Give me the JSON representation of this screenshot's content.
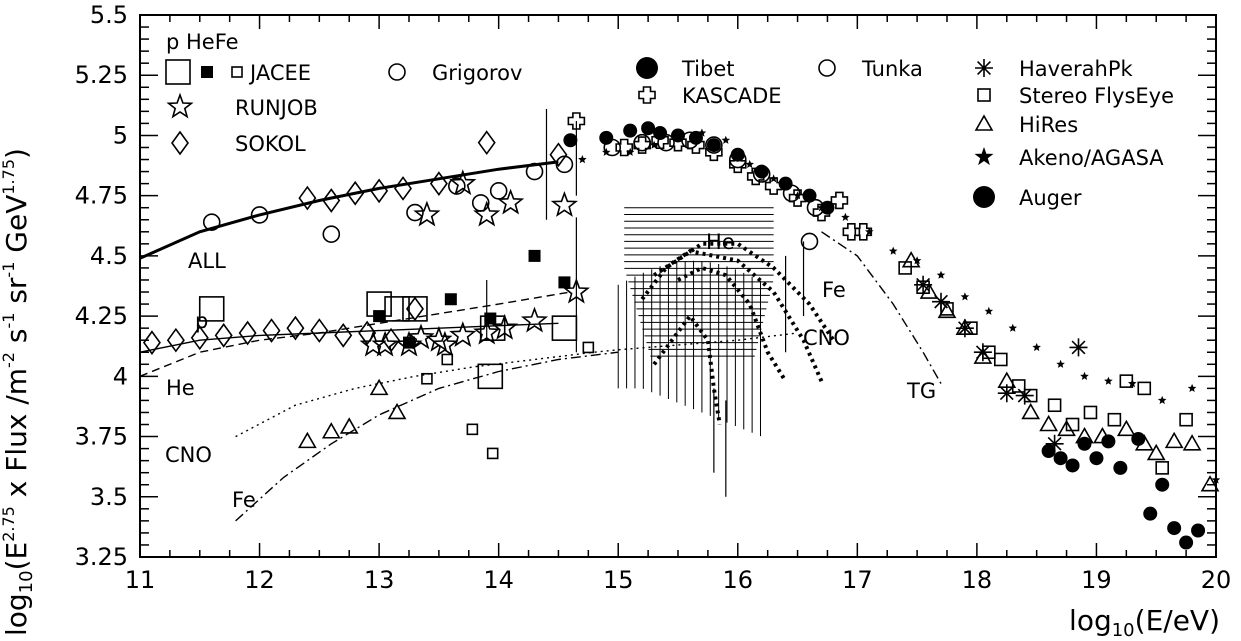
{
  "chart_data": {
    "type": "scatter",
    "title": "",
    "xlabel_parts": [
      "log",
      "10",
      "(E/eV)"
    ],
    "ylabel_parts": [
      "log",
      "10",
      "(E",
      "2.75",
      " x Flux /m",
      "-2",
      " s",
      "-1",
      " sr",
      "-1",
      " GeV",
      "1.75",
      ")"
    ],
    "xlim": [
      11,
      20
    ],
    "ylim": [
      3.25,
      5.5
    ],
    "x_ticks": [
      "11",
      "12",
      "13",
      "14",
      "15",
      "16",
      "17",
      "18",
      "19",
      "20"
    ],
    "y_ticks": [
      "3.25",
      "3.5",
      "3.75",
      "4",
      "4.25",
      "4.5",
      "4.75",
      "5",
      "5.25",
      "5.5"
    ],
    "legend_header": "p HeFe",
    "legend": [
      {
        "label": "JACEE",
        "marker": "square-open-large, square-filled, square-open-small"
      },
      {
        "label": "Grigorov",
        "marker": "circle-open"
      },
      {
        "label": "RUNJOB",
        "marker": "star-open"
      },
      {
        "label": "SOKOL",
        "marker": "diamond-open"
      },
      {
        "label": "Tibet",
        "marker": "circle-filled"
      },
      {
        "label": "Tunka",
        "marker": "circle-open"
      },
      {
        "label": "KASCADE",
        "marker": "cross-open"
      },
      {
        "label": "HaverahPk",
        "marker": "asterisk"
      },
      {
        "label": "Stereo FlysEye",
        "marker": "square-open"
      },
      {
        "label": "HiRes",
        "marker": "triangle-open"
      },
      {
        "label": "Akeno/AGASA",
        "marker": "star-filled"
      },
      {
        "label": "Auger",
        "marker": "circle-filled"
      }
    ],
    "annotations": [
      "ALL",
      "p",
      "He",
      "CNO",
      "Fe",
      "He",
      "Fe",
      "CNO",
      "TG"
    ],
    "series": [
      {
        "name": "ALL",
        "style": "fit-curve",
        "points": [
          [
            11,
            4.49
          ],
          [
            11.5,
            4.6
          ],
          [
            12,
            4.67
          ],
          [
            12.5,
            4.73
          ],
          [
            13,
            4.78
          ],
          [
            13.5,
            4.82
          ],
          [
            14,
            4.86
          ],
          [
            14.5,
            4.89
          ]
        ]
      },
      {
        "name": "p",
        "style": "fit-curve",
        "points": [
          [
            11,
            4.1
          ],
          [
            11.5,
            4.15
          ],
          [
            12,
            4.17
          ],
          [
            12.5,
            4.18
          ],
          [
            13,
            4.19
          ],
          [
            13.5,
            4.2
          ],
          [
            14,
            4.21
          ],
          [
            14.5,
            4.22
          ]
        ]
      },
      {
        "name": "He",
        "style": "dashed",
        "points": [
          [
            11,
            4.0
          ],
          [
            11.5,
            4.1
          ],
          [
            12,
            4.15
          ],
          [
            12.5,
            4.18
          ],
          [
            13,
            4.22
          ],
          [
            13.5,
            4.26
          ],
          [
            14,
            4.3
          ],
          [
            14.6,
            4.35
          ]
        ]
      },
      {
        "name": "CNO",
        "style": "dotted",
        "points": [
          [
            11.8,
            3.75
          ],
          [
            12.3,
            3.88
          ],
          [
            12.8,
            3.95
          ],
          [
            13.3,
            4.0
          ],
          [
            13.8,
            4.04
          ],
          [
            14.3,
            4.07
          ],
          [
            14.8,
            4.1
          ],
          [
            15,
            4.11
          ],
          [
            15.5,
            4.13
          ],
          [
            16,
            4.15
          ],
          [
            16.5,
            4.18
          ]
        ]
      },
      {
        "name": "Fe",
        "style": "dash-dot",
        "points": [
          [
            11.8,
            3.4
          ],
          [
            12.2,
            3.58
          ],
          [
            12.6,
            3.72
          ],
          [
            13,
            3.84
          ],
          [
            13.5,
            3.95
          ],
          [
            14,
            4.02
          ],
          [
            14.5,
            4.07
          ],
          [
            15,
            4.1
          ]
        ]
      },
      {
        "name": "TG",
        "style": "dash-dot",
        "points": [
          [
            16.7,
            4.6
          ],
          [
            17.0,
            4.5
          ],
          [
            17.3,
            4.3
          ],
          [
            17.55,
            4.1
          ],
          [
            17.7,
            3.97
          ]
        ]
      },
      {
        "name": "He",
        "style": "thick-dotted",
        "points": [
          [
            15.3,
            4.42
          ],
          [
            15.6,
            4.52
          ],
          [
            16.0,
            4.48
          ],
          [
            16.3,
            4.35
          ],
          [
            16.55,
            4.15
          ],
          [
            16.7,
            3.98
          ]
        ]
      },
      {
        "name": "CNO",
        "style": "thick-dotted",
        "points": [
          [
            15.5,
            4.4
          ],
          [
            15.7,
            4.45
          ],
          [
            15.9,
            4.42
          ],
          [
            16.1,
            4.3
          ],
          [
            16.25,
            4.1
          ],
          [
            16.4,
            3.98
          ]
        ]
      },
      {
        "name": "Fe",
        "style": "thick-dotted",
        "points": [
          [
            15.2,
            4.32
          ],
          [
            15.4,
            4.45
          ],
          [
            15.7,
            4.55
          ],
          [
            16.0,
            4.55
          ],
          [
            16.3,
            4.45
          ],
          [
            16.6,
            4.3
          ],
          [
            16.8,
            4.15
          ]
        ]
      },
      {
        "name": "p",
        "style": "thick-dotted",
        "points": [
          [
            15.3,
            4.05
          ],
          [
            15.45,
            4.15
          ],
          [
            15.6,
            4.25
          ],
          [
            15.75,
            4.15
          ],
          [
            15.8,
            3.95
          ],
          [
            15.85,
            3.8
          ]
        ]
      },
      {
        "name": "JACEE",
        "marker": "square-open-large",
        "points": [
          [
            11.6,
            4.28
          ],
          [
            13.0,
            4.3
          ],
          [
            13.15,
            4.28
          ],
          [
            13.3,
            4.28
          ],
          [
            13.95,
            4.2
          ],
          [
            13.93,
            4.0
          ],
          [
            14.55,
            4.2
          ]
        ]
      },
      {
        "name": "JACEE",
        "marker": "square-filled",
        "points": [
          [
            13.0,
            4.25
          ],
          [
            13.25,
            4.14
          ],
          [
            13.6,
            4.32
          ],
          [
            13.93,
            4.24
          ],
          [
            14.3,
            4.5
          ],
          [
            14.55,
            4.39
          ]
        ]
      },
      {
        "name": "JACEE",
        "marker": "square-open-small",
        "points": [
          [
            13.4,
            3.99
          ],
          [
            13.57,
            4.07
          ],
          [
            13.78,
            3.78
          ],
          [
            13.95,
            3.68
          ],
          [
            14.75,
            4.12
          ]
        ]
      },
      {
        "name": "Grigorov",
        "marker": "circle-open",
        "points": [
          [
            11.6,
            4.64
          ],
          [
            12.0,
            4.67
          ],
          [
            12.6,
            4.59
          ],
          [
            13.3,
            4.68
          ],
          [
            13.65,
            4.79
          ],
          [
            13.85,
            4.72
          ],
          [
            14.0,
            4.77
          ],
          [
            14.3,
            4.85
          ],
          [
            14.55,
            4.88
          ]
        ]
      },
      {
        "name": "RUNJOB",
        "marker": "star-open",
        "points": [
          [
            13.05,
            4.13
          ],
          [
            13.35,
            4.16
          ],
          [
            13.5,
            4.15
          ],
          [
            13.55,
            4.13
          ],
          [
            13.7,
            4.17
          ],
          [
            13.9,
            4.18
          ],
          [
            14.05,
            4.2
          ],
          [
            14.3,
            4.23
          ],
          [
            14.65,
            4.35
          ],
          [
            13.25,
            4.13
          ],
          [
            12.95,
            4.13
          ],
          [
            13.4,
            4.67
          ],
          [
            13.7,
            4.8
          ],
          [
            13.9,
            4.67
          ],
          [
            14.1,
            4.72
          ],
          [
            14.55,
            4.71
          ]
        ]
      },
      {
        "name": "SOKOL",
        "marker": "diamond-open",
        "points": [
          [
            11.1,
            4.14
          ],
          [
            11.3,
            4.15
          ],
          [
            11.5,
            4.16
          ],
          [
            11.7,
            4.17
          ],
          [
            11.9,
            4.18
          ],
          [
            12.1,
            4.19
          ],
          [
            12.3,
            4.2
          ],
          [
            12.5,
            4.19
          ],
          [
            12.7,
            4.17
          ],
          [
            12.9,
            4.18
          ],
          [
            13.1,
            4.15
          ],
          [
            13.3,
            4.28
          ],
          [
            12.4,
            4.74
          ],
          [
            12.6,
            4.73
          ],
          [
            12.8,
            4.76
          ],
          [
            13.0,
            4.77
          ],
          [
            13.2,
            4.78
          ],
          [
            13.5,
            4.8
          ],
          [
            13.9,
            4.97
          ],
          [
            14.5,
            4.92
          ]
        ]
      },
      {
        "name": "Tibet",
        "marker": "circle-filled",
        "points": [
          [
            14.6,
            4.98
          ],
          [
            14.9,
            4.99
          ],
          [
            15.1,
            5.02
          ],
          [
            15.25,
            5.03
          ],
          [
            15.35,
            5.01
          ],
          [
            15.5,
            5.0
          ],
          [
            15.65,
            4.99
          ],
          [
            15.8,
            4.96
          ],
          [
            16.0,
            4.92
          ],
          [
            16.2,
            4.85
          ],
          [
            16.4,
            4.8
          ],
          [
            16.6,
            4.75
          ],
          [
            16.75,
            4.7
          ]
        ]
      },
      {
        "name": "Tunka",
        "marker": "circle-open",
        "points": [
          [
            14.95,
            4.95
          ],
          [
            15.2,
            4.97
          ],
          [
            15.4,
            4.97
          ],
          [
            15.6,
            4.98
          ],
          [
            15.8,
            4.96
          ],
          [
            16.0,
            4.9
          ],
          [
            16.2,
            4.84
          ],
          [
            16.45,
            4.76
          ],
          [
            16.65,
            4.7
          ],
          [
            16.6,
            4.56
          ]
        ]
      },
      {
        "name": "KASCADE",
        "marker": "cross-open",
        "points": [
          [
            14.65,
            5.06
          ],
          [
            15.05,
            4.95
          ],
          [
            15.2,
            4.96
          ],
          [
            15.35,
            4.98
          ],
          [
            15.5,
            4.97
          ],
          [
            15.65,
            4.96
          ],
          [
            15.8,
            4.93
          ],
          [
            16.0,
            4.88
          ],
          [
            16.15,
            4.83
          ],
          [
            16.3,
            4.79
          ],
          [
            16.5,
            4.74
          ],
          [
            16.7,
            4.68
          ],
          [
            16.85,
            4.73
          ],
          [
            16.95,
            4.6
          ],
          [
            17.05,
            4.6
          ]
        ]
      },
      {
        "name": "HaverahPk",
        "marker": "asterisk",
        "points": [
          [
            17.55,
            4.38
          ],
          [
            17.7,
            4.31
          ],
          [
            17.9,
            4.2
          ],
          [
            18.05,
            4.1
          ],
          [
            18.25,
            3.93
          ],
          [
            18.4,
            3.92
          ],
          [
            18.65,
            3.72
          ],
          [
            18.85,
            4.12
          ]
        ]
      },
      {
        "name": "Stereo FlysEye",
        "marker": "square-open",
        "points": [
          [
            17.4,
            4.45
          ],
          [
            17.55,
            4.37
          ],
          [
            17.75,
            4.28
          ],
          [
            17.95,
            4.2
          ],
          [
            18.1,
            4.1
          ],
          [
            18.2,
            4.07
          ],
          [
            18.35,
            3.96
          ],
          [
            18.45,
            3.92
          ],
          [
            18.65,
            3.88
          ],
          [
            18.8,
            3.8
          ],
          [
            18.95,
            3.85
          ],
          [
            19.15,
            3.82
          ],
          [
            19.25,
            3.98
          ],
          [
            19.4,
            3.95
          ],
          [
            19.55,
            3.62
          ],
          [
            19.75,
            3.82
          ]
        ]
      },
      {
        "name": "HiRes",
        "marker": "triangle-open",
        "points": [
          [
            12.4,
            3.73
          ],
          [
            12.6,
            3.77
          ],
          [
            12.75,
            3.79
          ],
          [
            13.0,
            3.95
          ],
          [
            13.15,
            3.85
          ],
          [
            17.45,
            4.48
          ],
          [
            17.6,
            4.35
          ],
          [
            17.75,
            4.27
          ],
          [
            17.9,
            4.2
          ],
          [
            18.05,
            4.08
          ],
          [
            18.25,
            3.98
          ],
          [
            18.45,
            3.85
          ],
          [
            18.6,
            3.8
          ],
          [
            18.75,
            3.78
          ],
          [
            18.9,
            3.75
          ],
          [
            19.05,
            3.75
          ],
          [
            19.25,
            3.78
          ],
          [
            19.4,
            3.72
          ],
          [
            19.5,
            3.68
          ],
          [
            19.65,
            3.73
          ],
          [
            19.8,
            3.72
          ],
          [
            19.95,
            3.55
          ]
        ]
      },
      {
        "name": "Akeno/AGASA",
        "marker": "star-filled",
        "points": [
          [
            14.7,
            4.9
          ],
          [
            14.9,
            4.93
          ],
          [
            15.1,
            4.93
          ],
          [
            15.3,
            4.96
          ],
          [
            15.5,
            5.0
          ],
          [
            15.7,
            5.01
          ],
          [
            15.9,
            4.98
          ],
          [
            16.1,
            4.88
          ],
          [
            16.3,
            4.82
          ],
          [
            16.5,
            4.75
          ],
          [
            16.7,
            4.7
          ],
          [
            16.9,
            4.66
          ],
          [
            17.1,
            4.6
          ],
          [
            17.3,
            4.52
          ],
          [
            17.5,
            4.48
          ],
          [
            17.7,
            4.42
          ],
          [
            17.9,
            4.33
          ],
          [
            18.1,
            4.27
          ],
          [
            18.3,
            4.2
          ],
          [
            18.5,
            4.12
          ],
          [
            18.7,
            4.05
          ],
          [
            18.9,
            4.0
          ],
          [
            19.1,
            3.98
          ],
          [
            19.3,
            3.97
          ],
          [
            19.55,
            3.9
          ],
          [
            19.8,
            3.95
          ],
          [
            20.0,
            3.57
          ]
        ]
      },
      {
        "name": "Auger",
        "marker": "circle-filled",
        "points": [
          [
            18.6,
            3.69
          ],
          [
            18.7,
            3.66
          ],
          [
            18.8,
            3.63
          ],
          [
            18.9,
            3.72
          ],
          [
            19.0,
            3.66
          ],
          [
            19.1,
            3.73
          ],
          [
            19.2,
            3.62
          ],
          [
            19.35,
            3.74
          ],
          [
            19.45,
            3.43
          ],
          [
            19.55,
            3.55
          ],
          [
            19.65,
            3.37
          ],
          [
            19.75,
            3.31
          ],
          [
            19.85,
            3.36
          ]
        ]
      }
    ]
  }
}
